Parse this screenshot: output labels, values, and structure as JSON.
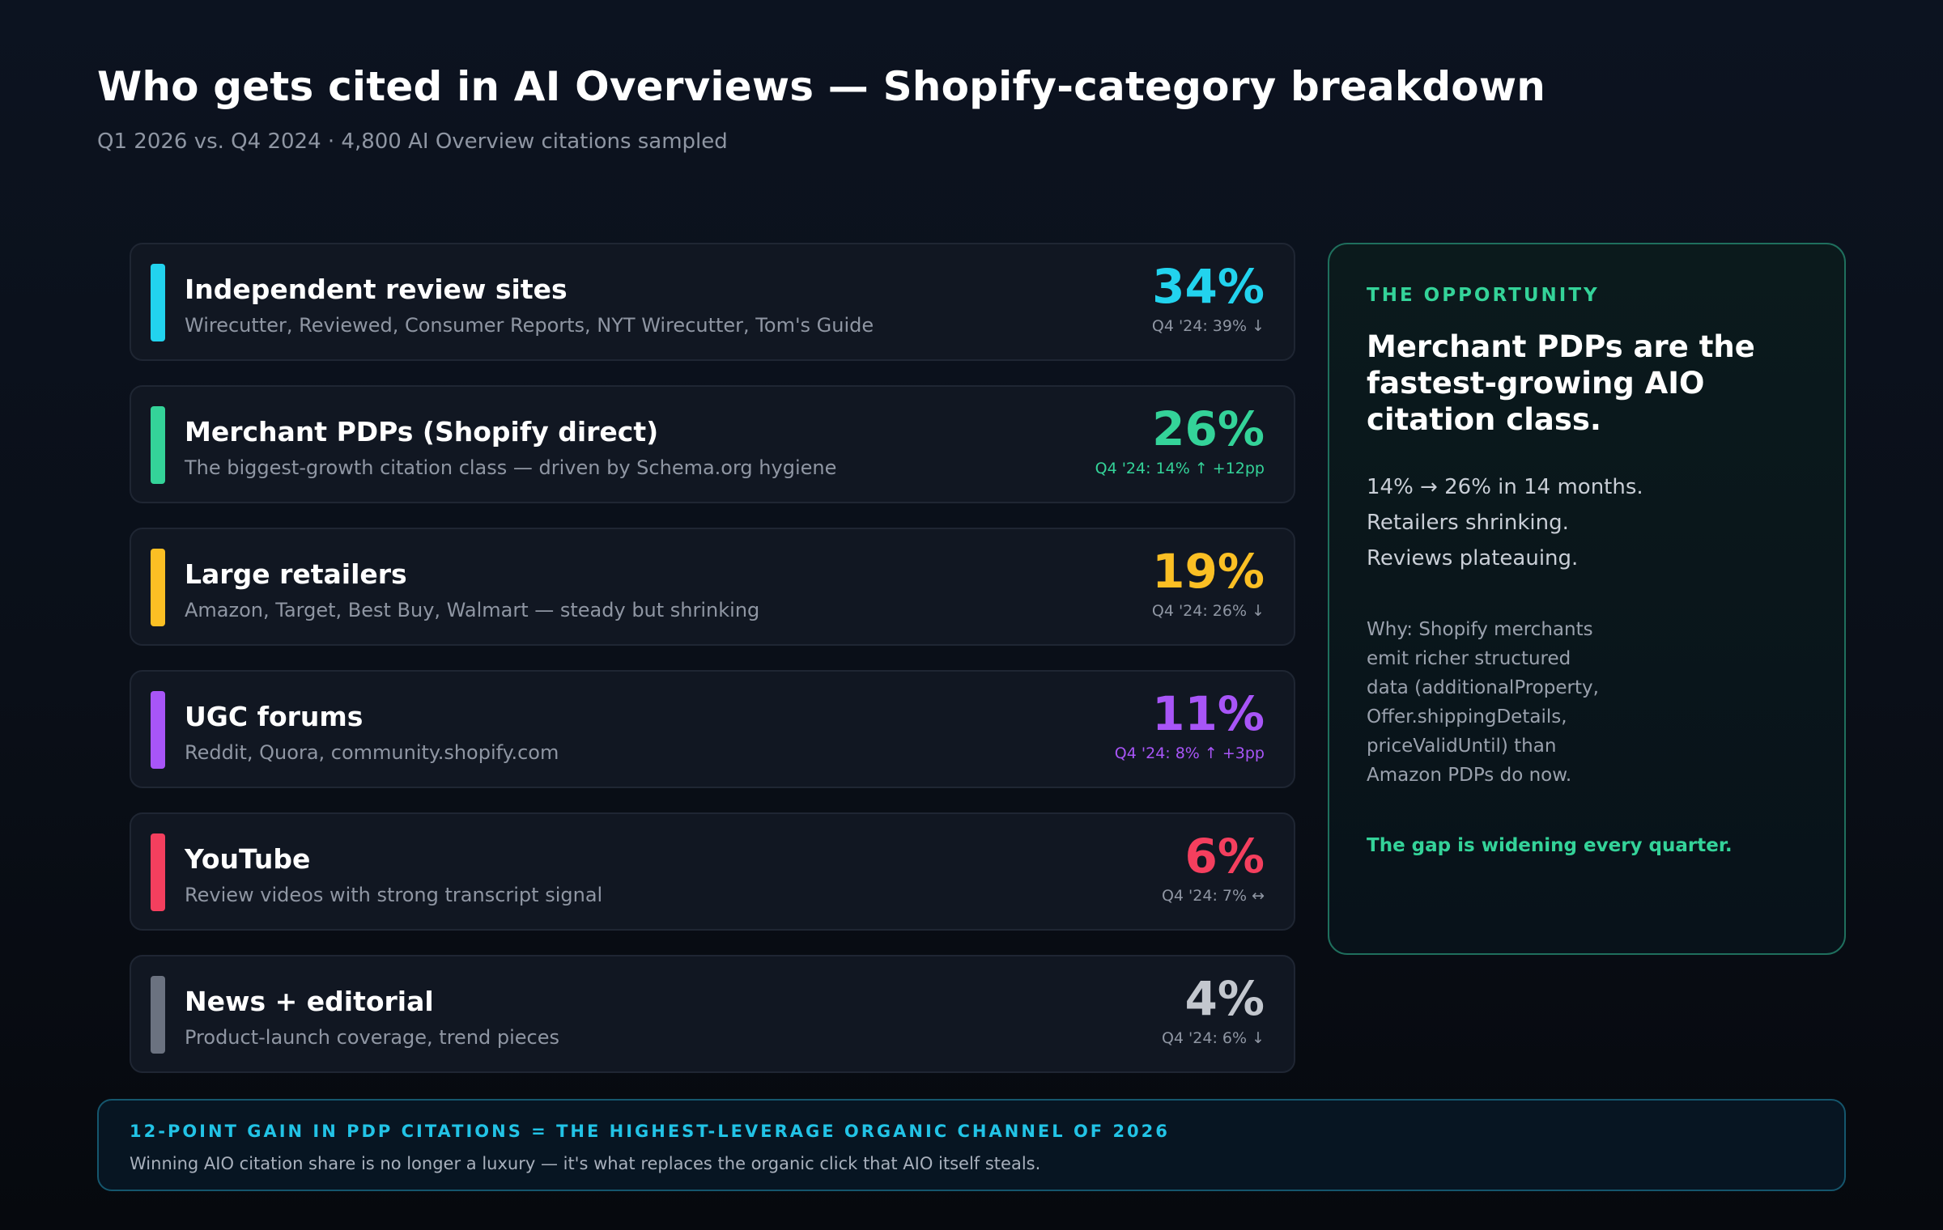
{
  "header": {
    "title": "Who gets cited in AI Overviews — Shopify-category breakdown",
    "subtitle": "Q1 2026 vs. Q4 2024 · 4,800 AI Overview citations sampled"
  },
  "categories": [
    {
      "name": "Independent review sites",
      "desc": "Wirecutter, Reviewed, Consumer Reports, NYT Wirecutter, Tom's Guide",
      "pct": "34%",
      "prev": "Q4 '24: 39% ↓",
      "color": "#22d3ee",
      "prev_color": "#8f96a3"
    },
    {
      "name": "Merchant PDPs (Shopify direct)",
      "desc": "The biggest-growth citation class — driven by Schema.org hygiene",
      "pct": "26%",
      "prev": "Q4 '24: 14% ↑ +12pp",
      "color": "#34d399",
      "prev_color": "#34d399"
    },
    {
      "name": "Large retailers",
      "desc": "Amazon, Target, Best Buy, Walmart — steady but shrinking",
      "pct": "19%",
      "prev": "Q4 '24: 26% ↓",
      "color": "#fbbf24",
      "prev_color": "#8f96a3"
    },
    {
      "name": "UGC forums",
      "desc": "Reddit, Quora, community.shopify.com",
      "pct": "11%",
      "prev": "Q4 '24: 8% ↑ +3pp",
      "color": "#a855f7",
      "prev_color": "#a855f7"
    },
    {
      "name": "YouTube",
      "desc": "Review videos with strong transcript signal",
      "pct": "6%",
      "prev": "Q4 '24: 7% ↔",
      "color": "#f43f5e",
      "prev_color": "#8f96a3"
    },
    {
      "name": "News + editorial",
      "desc": "Product-launch coverage, trend pieces",
      "pct": "4%",
      "prev": "Q4 '24: 6% ↓",
      "color": "#6b7280",
      "prev_color": "#8f96a3",
      "pct_color": "#c3c7ce"
    }
  ],
  "panel": {
    "kicker": "THE OPPORTUNITY",
    "headline_lines": [
      "Merchant PDPs are the",
      "fastest-growing AIO",
      "citation class."
    ],
    "lines": [
      "14% → 26% in 14 months.",
      "Retailers shrinking.",
      "Reviews plateauing."
    ],
    "why_lines": [
      "Why: Shopify merchants",
      "emit richer structured",
      "data (additionalProperty,",
      "Offer.shippingDetails,",
      "priceValidUntil) than",
      "Amazon PDPs do now."
    ],
    "gap": "The gap is widening every quarter."
  },
  "banner": {
    "headline": "12-POINT GAIN IN PDP CITATIONS = THE HIGHEST-LEVERAGE ORGANIC CHANNEL OF 2026",
    "text": "Winning AIO citation share is no longer a luxury — it's what replaces the organic click that AIO itself steals."
  }
}
